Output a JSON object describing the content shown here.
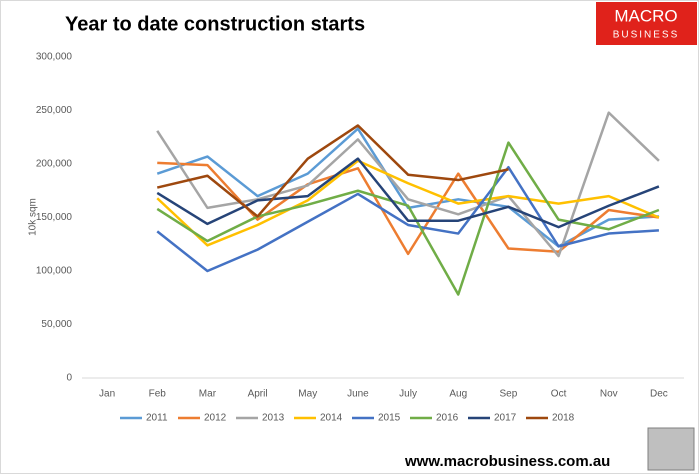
{
  "chart_data": {
    "type": "line",
    "title": "Year to date construction starts",
    "y_label": "10k sqm",
    "logo": [
      "MACRO",
      "BUSINESS"
    ],
    "source": "www.macrobusiness.com.au",
    "categories": [
      "Jan",
      "Feb",
      "Mar",
      "April",
      "May",
      "June",
      "July",
      "Aug",
      "Sep",
      "Oct",
      "Nov",
      "Dec"
    ],
    "series": [
      {
        "name": "2011",
        "color": "#5b9bd5",
        "values": [
          null,
          191000,
          207000,
          170000,
          191000,
          233000,
          159000,
          167000,
          160000,
          123000,
          148000,
          151000
        ]
      },
      {
        "name": "2012",
        "color": "#ed7d31",
        "values": [
          null,
          201000,
          199000,
          148000,
          181000,
          196000,
          116000,
          191000,
          121000,
          118000,
          157000,
          150000
        ]
      },
      {
        "name": "2013",
        "color": "#a5a5a5",
        "values": [
          null,
          231000,
          159000,
          167000,
          180000,
          223000,
          167000,
          153000,
          170000,
          114000,
          248000,
          203000
        ]
      },
      {
        "name": "2014",
        "color": "#ffc000",
        "values": [
          null,
          168000,
          124000,
          143000,
          166000,
          203000,
          182000,
          163000,
          170000,
          163000,
          170000,
          150000
        ]
      },
      {
        "name": "2015",
        "color": "#4472c4",
        "values": [
          null,
          137000,
          100000,
          120000,
          146000,
          172000,
          143000,
          135000,
          197000,
          123000,
          135000,
          138000
        ]
      },
      {
        "name": "2016",
        "color": "#70ad47",
        "values": [
          null,
          158000,
          128000,
          151000,
          162000,
          175000,
          161000,
          78000,
          220000,
          148000,
          139000,
          157000
        ]
      },
      {
        "name": "2017",
        "color": "#264478",
        "values": [
          null,
          173000,
          144000,
          166000,
          170000,
          205000,
          147000,
          147000,
          160000,
          141000,
          161000,
          179000
        ]
      },
      {
        "name": "2018",
        "color": "#9e480e",
        "values": [
          null,
          178000,
          189000,
          151000,
          205000,
          236000,
          190000,
          185000,
          195000,
          null,
          null,
          null
        ]
      }
    ],
    "ylim": [
      0,
      300000
    ],
    "yticks": [
      0,
      {
        "value": 50000,
        "label": "50,000"
      },
      {
        "value": 100000,
        "label": "100,000"
      },
      {
        "value": 150000,
        "label": "150,000"
      },
      {
        "value": 200000,
        "label": "200,000"
      },
      {
        "value": 250000,
        "label": "250,000"
      },
      {
        "value": 300000,
        "label": "300,000"
      }
    ],
    "grid": false,
    "legend": "bottom"
  }
}
